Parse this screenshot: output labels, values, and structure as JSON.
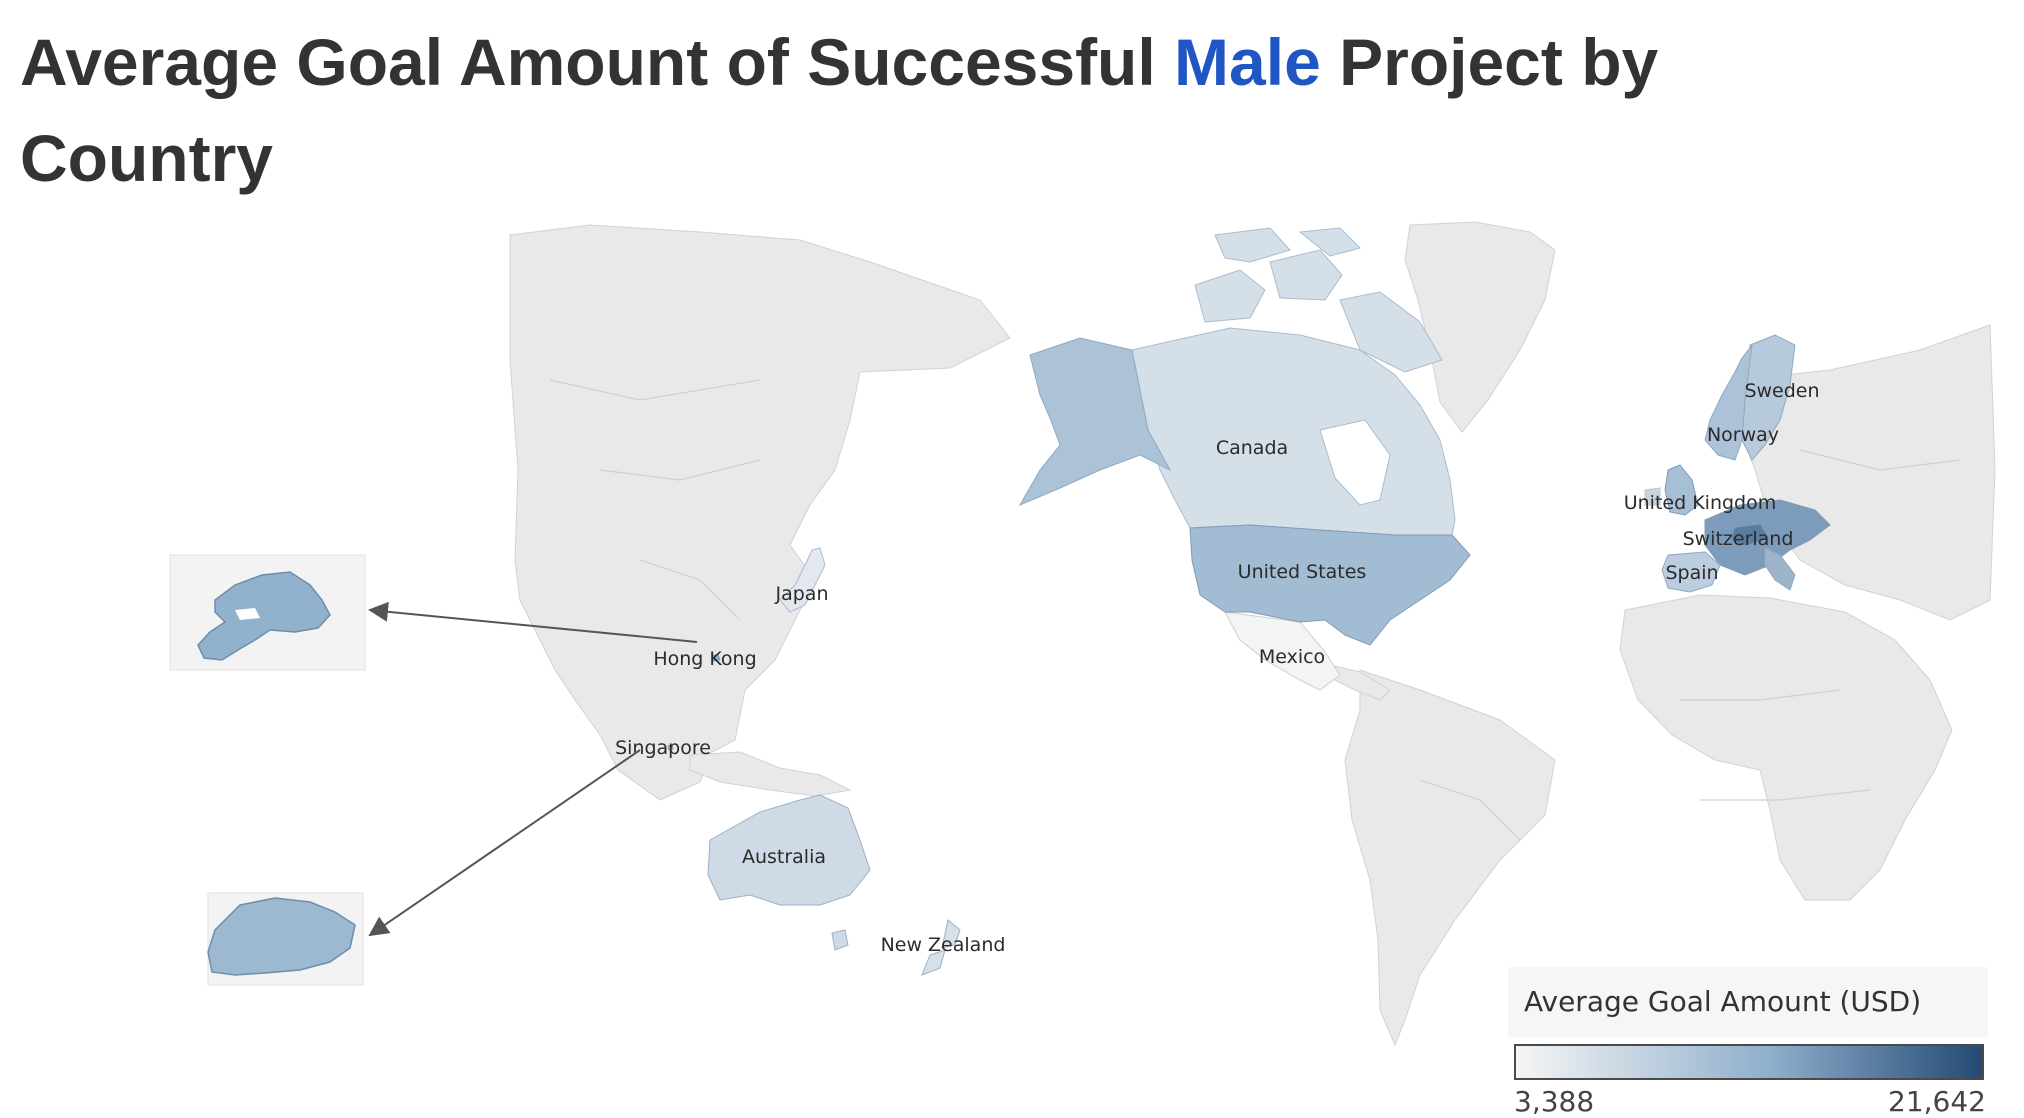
{
  "title": {
    "prefix": "Average Goal Amount of Successful ",
    "highlight": "Male",
    "suffix": " Project by Country"
  },
  "colors": {
    "land": "#e9e9e9",
    "border": "#cfcfcf",
    "low": "#f5f5f5",
    "high": "#244a74",
    "accent": "#1f56c4"
  },
  "countries": [
    {
      "name": "Canada",
      "value": 6500
    },
    {
      "name": "United States",
      "value": 11500
    },
    {
      "name": "Mexico",
      "value": 3600
    },
    {
      "name": "Japan",
      "value": 5200
    },
    {
      "name": "Hong Kong",
      "value": 13000
    },
    {
      "name": "Singapore",
      "value": 12000
    },
    {
      "name": "Australia",
      "value": 7200
    },
    {
      "name": "New Zealand",
      "value": 6300
    },
    {
      "name": "Sweden",
      "value": 9500
    },
    {
      "name": "Norway",
      "value": 10500
    },
    {
      "name": "United Kingdom",
      "value": 11000
    },
    {
      "name": "Switzerland",
      "value": 17500
    },
    {
      "name": "Spain",
      "value": 9000
    },
    {
      "name": "Alaska",
      "value": 10500
    }
  ],
  "legend": {
    "title": "Average Goal Amount (USD)",
    "min": "3,388",
    "max": "21,642"
  }
}
